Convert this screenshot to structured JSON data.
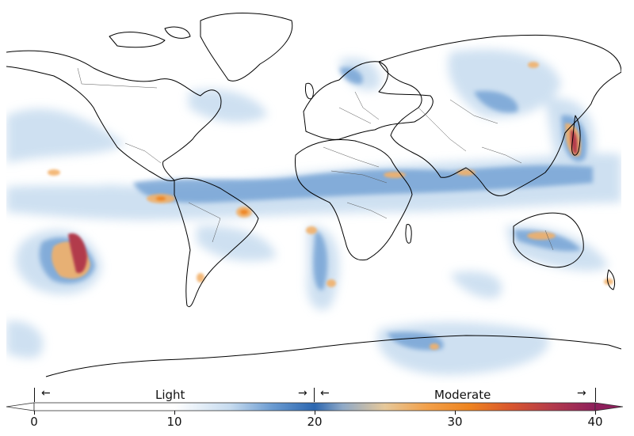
{
  "legend": {
    "ranges": [
      {
        "label": "Light",
        "from": 0,
        "to": 20,
        "left_arrow": "←",
        "right_arrow": "→"
      },
      {
        "label": "Moderate",
        "from": 20,
        "to": 40,
        "left_arrow": "←",
        "right_arrow": "→"
      }
    ],
    "colorbar": {
      "min": 0,
      "max": 40,
      "extend": "both",
      "ticks": [
        "0",
        "10",
        "20",
        "30",
        "40"
      ],
      "color_stops": [
        {
          "value": 0,
          "color": "#ffffff"
        },
        {
          "value": 10,
          "color": "#ffffff"
        },
        {
          "value": 14,
          "color": "#c6dbef"
        },
        {
          "value": 17,
          "color": "#6b9bd1"
        },
        {
          "value": 20,
          "color": "#2c67b0"
        },
        {
          "value": 22,
          "color": "#8fa9c7"
        },
        {
          "value": 25,
          "color": "#e6c89a"
        },
        {
          "value": 28,
          "color": "#f2a04a"
        },
        {
          "value": 31,
          "color": "#ee8420"
        },
        {
          "value": 34,
          "color": "#d8562e"
        },
        {
          "value": 37,
          "color": "#b23a4c"
        },
        {
          "value": 40,
          "color": "#8e1f5c"
        }
      ]
    }
  },
  "map": {
    "colors": {
      "land_outline": "#000000",
      "border": "#555555",
      "light": "#c6dbef",
      "light_mid": "#6b9bd1",
      "light_strong": "#2c67b0",
      "moderate_low": "#f2b16a",
      "moderate_mid": "#ee8420",
      "moderate_high": "#b23a4c",
      "moderate_max": "#8e1f5c"
    }
  }
}
